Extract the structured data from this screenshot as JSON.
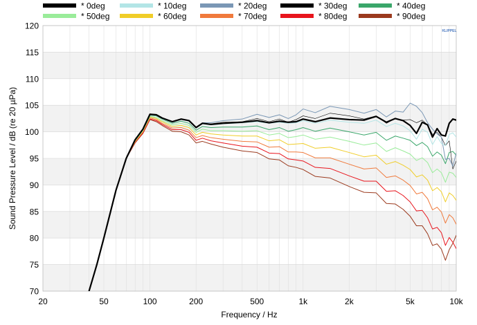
{
  "chart_data": {
    "type": "line",
    "xlabel": "Frequency / Hz",
    "ylabel": "Sound Pressure Level / dB (re 20 µPa)",
    "x_scale": "log",
    "xlim": [
      20,
      10000
    ],
    "ylim": [
      70,
      120
    ],
    "x_ticks": [
      20,
      50,
      100,
      200,
      500,
      1000,
      2000,
      5000,
      10000
    ],
    "x_tick_labels": [
      "20",
      "50",
      "100",
      "200",
      "500",
      "1k",
      "2k",
      "5k",
      "10k"
    ],
    "y_ticks": [
      70,
      75,
      80,
      85,
      90,
      95,
      100,
      105,
      110,
      115,
      120
    ],
    "y_tick_labels": [
      "70",
      "75",
      "80",
      "85",
      "90",
      "95",
      "100",
      "105",
      "110",
      "115",
      "120"
    ],
    "grid": true,
    "legend_position": "top",
    "watermark": "KLIPPEL",
    "x": [
      40,
      45,
      50,
      60,
      70,
      80,
      90,
      100,
      110,
      120,
      140,
      160,
      180,
      200,
      220,
      250,
      300,
      400,
      500,
      600,
      700,
      800,
      900,
      1000,
      1200,
      1500,
      2000,
      2500,
      3000,
      3500,
      4000,
      4500,
      5000,
      5500,
      6000,
      6500,
      7000,
      7500,
      8000,
      8500,
      9000,
      9500,
      10000
    ],
    "series": [
      {
        "name": "* 0deg",
        "color": "#000000",
        "width": 2.2,
        "values": [
          70,
          75,
          80,
          89,
          95,
          98.5,
          100.5,
          103.3,
          103.2,
          102.6,
          101.9,
          102.4,
          102.1,
          100.8,
          101.6,
          101.4,
          101.6,
          101.8,
          102.1,
          101.7,
          102.0,
          101.8,
          101.9,
          102.4,
          101.9,
          102.6,
          102.3,
          102.2,
          102.9,
          101.8,
          102.5,
          102.1,
          101.2,
          99.7,
          101.8,
          101.3,
          99.0,
          100.6,
          99.4,
          99.2,
          101.6,
          102.4,
          102.2
        ]
      },
      {
        "name": "* 10deg",
        "color": "#b3e5e6",
        "width": 1.0,
        "values": [
          70,
          75,
          80,
          89,
          95,
          98.5,
          100.5,
          103.2,
          103.1,
          102.5,
          101.8,
          102.3,
          102.0,
          100.7,
          101.5,
          101.3,
          101.5,
          101.7,
          101.9,
          101.6,
          101.8,
          101.6,
          101.7,
          102.1,
          101.6,
          102.2,
          101.8,
          101.6,
          102.2,
          101.0,
          101.6,
          101.1,
          100.2,
          98.6,
          100.5,
          99.9,
          97.6,
          99.1,
          97.8,
          97.4,
          99.5,
          99.8,
          99.0
        ]
      },
      {
        "name": "* 20deg",
        "color": "#7a97b5",
        "width": 1.0,
        "values": [
          70,
          75,
          80,
          89,
          95,
          98.5,
          100.5,
          103.2,
          103.1,
          102.5,
          101.8,
          102.3,
          102.0,
          100.7,
          101.7,
          101.7,
          102.1,
          102.4,
          103.3,
          102.7,
          103.2,
          102.5,
          103.2,
          104.3,
          103.6,
          104.8,
          104.2,
          103.5,
          104.2,
          102.8,
          103.9,
          103.7,
          105.4,
          104.8,
          103.6,
          101.7,
          100.5,
          99.6,
          99.0,
          94.8,
          95.0,
          93.5,
          96.0
        ]
      },
      {
        "name": "* 30deg",
        "color": "#000000",
        "width": 0.6,
        "values": [
          70,
          75,
          80,
          89,
          95,
          98.5,
          100.5,
          103.2,
          103.1,
          102.5,
          101.8,
          102.3,
          102.0,
          100.7,
          101.6,
          101.5,
          101.8,
          101.9,
          102.5,
          101.9,
          102.4,
          101.8,
          102.3,
          103.0,
          102.5,
          103.5,
          103.0,
          102.4,
          103.0,
          101.6,
          102.5,
          102.2,
          102.3,
          101.7,
          102.2,
          101.3,
          99.5,
          99.9,
          99.0,
          97.4,
          98.3,
          93.0,
          94.5
        ]
      },
      {
        "name": "* 40deg",
        "color": "#3aa66a",
        "width": 1.0,
        "values": [
          70,
          75,
          80,
          89,
          95,
          98.4,
          100.4,
          103.1,
          103.0,
          102.4,
          101.6,
          102.0,
          101.6,
          100.3,
          101.0,
          100.8,
          100.9,
          100.9,
          101.1,
          100.4,
          100.8,
          100.1,
          100.4,
          100.8,
          100.1,
          100.7,
          100.0,
          99.4,
          99.9,
          98.4,
          99.2,
          98.8,
          98.4,
          97.4,
          98.0,
          97.2,
          95.4,
          96.2,
          95.6,
          94.0,
          96.1,
          96.3,
          95.6
        ]
      },
      {
        "name": "* 50deg",
        "color": "#9aec9a",
        "width": 1.0,
        "values": [
          70,
          75,
          80,
          89,
          95,
          98.3,
          100.2,
          102.9,
          102.7,
          102.1,
          101.3,
          101.6,
          101.2,
          99.9,
          100.5,
          100.2,
          100.2,
          100.1,
          100.2,
          99.4,
          99.7,
          98.9,
          99.1,
          99.4,
          98.6,
          99.0,
          98.2,
          97.5,
          97.9,
          96.3,
          97.0,
          96.4,
          95.8,
          94.6,
          95.1,
          94.2,
          92.3,
          93.0,
          92.3,
          90.5,
          92.4,
          92.2,
          91.4
        ]
      },
      {
        "name": "* 60deg",
        "color": "#f0cd28",
        "width": 1.0,
        "values": [
          70,
          75,
          80,
          89,
          95,
          98.2,
          100.1,
          102.8,
          102.5,
          101.9,
          101.0,
          101.2,
          100.8,
          99.4,
          99.9,
          99.6,
          99.4,
          99.2,
          99.2,
          98.3,
          98.5,
          97.6,
          97.7,
          97.8,
          96.9,
          97.1,
          96.1,
          95.3,
          95.6,
          93.9,
          94.4,
          93.7,
          92.9,
          91.5,
          91.9,
          90.9,
          88.9,
          89.5,
          88.7,
          86.8,
          88.5,
          88.0,
          87.1
        ]
      },
      {
        "name": "* 70deg",
        "color": "#f07a3c",
        "width": 1.0,
        "values": [
          70,
          75,
          80,
          89,
          95,
          98.1,
          100.0,
          102.6,
          102.3,
          101.6,
          100.7,
          100.8,
          100.3,
          98.9,
          99.3,
          98.9,
          98.6,
          98.2,
          98.1,
          97.1,
          97.2,
          96.2,
          96.2,
          96.1,
          95.1,
          95.1,
          93.9,
          93.0,
          93.2,
          91.4,
          91.7,
          90.9,
          89.9,
          88.3,
          88.6,
          87.4,
          85.3,
          85.8,
          84.9,
          82.8,
          84.4,
          83.8,
          82.6
        ]
      },
      {
        "name": "* 80deg",
        "color": "#e8141c",
        "width": 1.0,
        "values": [
          70,
          75,
          80,
          89,
          95,
          98.0,
          99.8,
          102.4,
          102.1,
          101.4,
          100.4,
          100.4,
          99.9,
          98.4,
          98.8,
          98.3,
          97.9,
          97.3,
          97.1,
          96.0,
          95.9,
          94.9,
          94.7,
          94.5,
          93.3,
          93.1,
          91.7,
          90.7,
          90.7,
          88.8,
          88.9,
          88.0,
          86.8,
          85.1,
          85.2,
          83.8,
          81.7,
          82.0,
          81.0,
          78.6,
          80.1,
          79.2,
          78.0
        ]
      },
      {
        "name": "* 90deg",
        "color": "#9b3a1e",
        "width": 1.0,
        "values": [
          70,
          75,
          80,
          89,
          95,
          97.9,
          99.7,
          102.3,
          101.9,
          101.2,
          100.1,
          100.0,
          99.4,
          97.9,
          98.2,
          97.7,
          97.1,
          96.4,
          96.1,
          94.9,
          94.7,
          93.6,
          93.3,
          92.9,
          91.6,
          91.3,
          89.7,
          88.6,
          88.5,
          86.5,
          86.4,
          85.4,
          84.1,
          82.3,
          82.3,
          80.8,
          78.6,
          78.9,
          77.9,
          75.8,
          77.8,
          79.0,
          80.5
        ]
      }
    ]
  }
}
